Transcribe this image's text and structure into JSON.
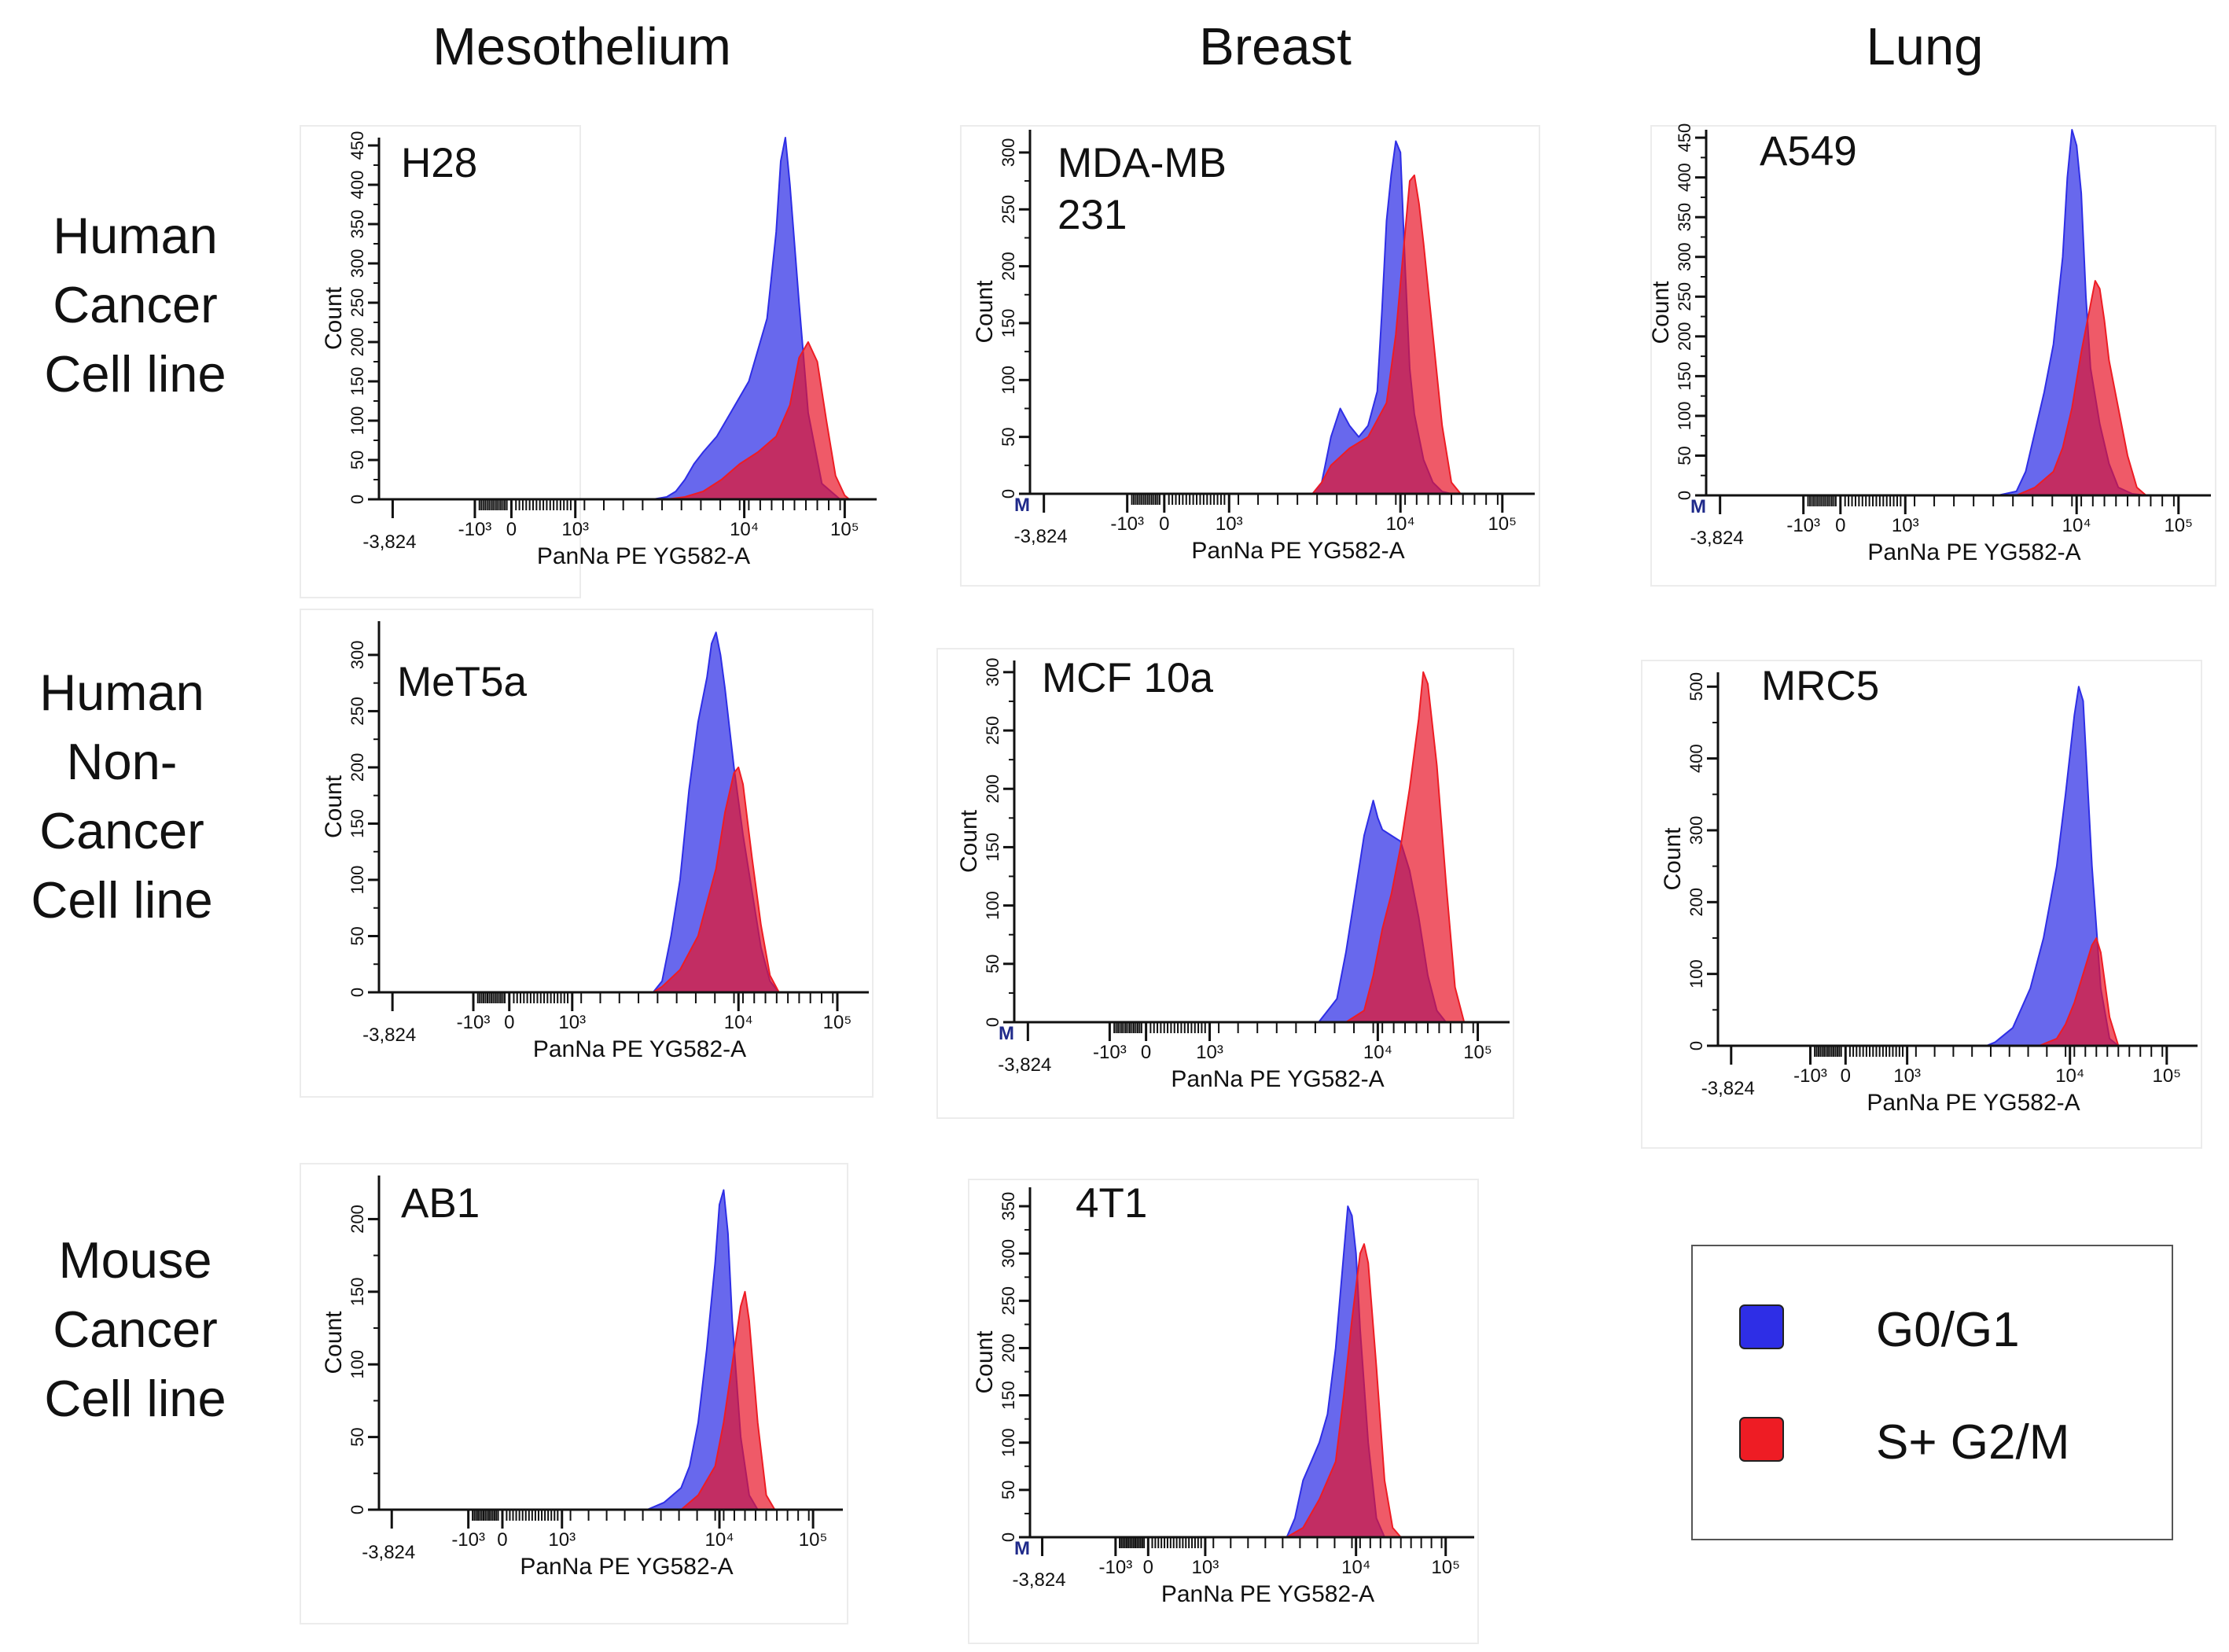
{
  "column_titles": [
    "Mesothelium",
    "Breast",
    "Lung"
  ],
  "row_titles": [
    [
      "Human",
      "Cancer",
      "Cell line"
    ],
    [
      "Human",
      "Non-",
      "Cancer",
      "Cell line"
    ],
    [
      "Mouse",
      "Cancer",
      "Cell line"
    ]
  ],
  "legend": {
    "items": [
      {
        "label": "G0/G1",
        "color": "#2e2ee6"
      },
      {
        "label": "S+ G2/M",
        "color": "#ee1c24"
      }
    ]
  },
  "chart_data": [
    {
      "type": "area",
      "label": [
        "H28"
      ],
      "xlabel": "PanNa PE YG582-A",
      "ylabel": "Count",
      "xticks": [
        "-3,824",
        "-10³",
        "0",
        "10³",
        "10⁴",
        "10⁵"
      ],
      "yticks": [
        "0",
        "50",
        "100",
        "150",
        "200",
        "250",
        "300",
        "350",
        "400",
        "450"
      ],
      "ymax": 460,
      "marker": "",
      "series": [
        {
          "name": "G0/G1",
          "x": [
            1.5,
            1.8,
            2.0,
            2.2,
            2.4,
            2.55,
            2.7,
            2.85,
            3.0,
            3.1,
            3.2,
            3.3,
            3.4,
            3.55,
            3.7,
            3.9,
            4.1,
            4.2,
            4.25,
            4.3,
            4.35,
            4.45,
            4.55,
            4.7,
            4.9
          ],
          "y": [
            0,
            0,
            0,
            0,
            0,
            0,
            0,
            0,
            3,
            10,
            25,
            45,
            60,
            80,
            110,
            150,
            230,
            340,
            430,
            460,
            400,
            250,
            110,
            20,
            0
          ]
        },
        {
          "name": "S+ G2/M",
          "x": [
            1.5,
            2.0,
            2.5,
            3.0,
            3.2,
            3.4,
            3.6,
            3.8,
            4.0,
            4.2,
            4.35,
            4.45,
            4.55,
            4.65,
            4.75,
            4.85,
            4.95,
            5.0
          ],
          "y": [
            0,
            0,
            0,
            0,
            3,
            10,
            25,
            45,
            60,
            80,
            120,
            180,
            200,
            175,
            100,
            30,
            5,
            0
          ]
        }
      ]
    },
    {
      "type": "area",
      "label": [
        "MDA-MB",
        "231"
      ],
      "xlabel": "PanNa PE YG582-A",
      "ylabel": "Count",
      "xticks": [
        "-3,824",
        "-10³",
        "0",
        "10³",
        "10⁴",
        "10⁵"
      ],
      "yticks": [
        "0",
        "50",
        "100",
        "150",
        "200",
        "250",
        "300"
      ],
      "ymax": 320,
      "marker": "M",
      "series": [
        {
          "name": "G0/G1",
          "x": [
            1.5,
            2.0,
            2.5,
            2.9,
            3.0,
            3.1,
            3.2,
            3.3,
            3.4,
            3.5,
            3.6,
            3.65,
            3.7,
            3.75,
            3.8,
            3.85,
            3.9,
            3.95,
            4.0,
            4.1,
            4.2,
            4.3,
            4.4
          ],
          "y": [
            0,
            0,
            0,
            0,
            10,
            50,
            75,
            60,
            50,
            60,
            90,
            160,
            240,
            280,
            310,
            300,
            200,
            110,
            70,
            30,
            10,
            2,
            0
          ]
        },
        {
          "name": "S+ G2/M",
          "x": [
            1.5,
            2.5,
            2.9,
            3.0,
            3.1,
            3.3,
            3.5,
            3.7,
            3.8,
            3.9,
            3.95,
            4.0,
            4.05,
            4.1,
            4.2,
            4.3,
            4.4,
            4.5
          ],
          "y": [
            0,
            0,
            0,
            10,
            25,
            40,
            50,
            80,
            140,
            230,
            275,
            280,
            255,
            220,
            140,
            60,
            10,
            0
          ]
        }
      ]
    },
    {
      "type": "area",
      "label": [
        "A549"
      ],
      "xlabel": "PanNa PE YG582-A",
      "ylabel": "Count",
      "xticks": [
        "-3,824",
        "-10³",
        "0",
        "10³",
        "10⁴",
        "10⁵"
      ],
      "yticks": [
        "0",
        "50",
        "100",
        "150",
        "200",
        "250",
        "300",
        "350",
        "400",
        "450"
      ],
      "ymax": 460,
      "marker": "M",
      "series": [
        {
          "name": "G0/G1",
          "x": [
            1.5,
            2.0,
            2.5,
            3.0,
            3.2,
            3.3,
            3.4,
            3.5,
            3.6,
            3.7,
            3.75,
            3.8,
            3.85,
            3.9,
            3.95,
            4.0,
            4.1,
            4.2,
            4.3,
            4.45,
            4.6
          ],
          "y": [
            0,
            0,
            0,
            0,
            5,
            30,
            80,
            130,
            190,
            300,
            400,
            460,
            440,
            380,
            250,
            160,
            90,
            40,
            10,
            2,
            0
          ]
        },
        {
          "name": "S+ G2/M",
          "x": [
            1.5,
            2.5,
            3.2,
            3.4,
            3.6,
            3.7,
            3.8,
            3.9,
            4.0,
            4.05,
            4.1,
            4.15,
            4.2,
            4.3,
            4.4,
            4.5,
            4.6
          ],
          "y": [
            0,
            0,
            0,
            10,
            30,
            60,
            110,
            180,
            240,
            270,
            260,
            220,
            170,
            110,
            50,
            10,
            0
          ]
        }
      ]
    },
    {
      "type": "area",
      "label": [
        "MeT5a"
      ],
      "xlabel": "PanNa PE YG582-A",
      "ylabel": "Count",
      "xticks": [
        "-3,824",
        "-10³",
        "0",
        "10³",
        "10⁴",
        "10⁵"
      ],
      "yticks": [
        "0",
        "50",
        "100",
        "150",
        "200",
        "250",
        "300"
      ],
      "ymax": 330,
      "marker": "",
      "series": [
        {
          "name": "G0/G1",
          "x": [
            1.5,
            2.0,
            2.5,
            2.9,
            3.0,
            3.1,
            3.2,
            3.3,
            3.4,
            3.5,
            3.55,
            3.6,
            3.65,
            3.7,
            3.8,
            3.9,
            4.0,
            4.1,
            4.2,
            4.3
          ],
          "y": [
            0,
            0,
            0,
            0,
            10,
            50,
            100,
            180,
            240,
            280,
            310,
            320,
            300,
            270,
            200,
            140,
            90,
            40,
            10,
            0
          ]
        },
        {
          "name": "S+ G2/M",
          "x": [
            1.5,
            2.9,
            3.0,
            3.2,
            3.4,
            3.6,
            3.7,
            3.8,
            3.85,
            3.9,
            4.0,
            4.1,
            4.2,
            4.3
          ],
          "y": [
            0,
            0,
            5,
            20,
            50,
            110,
            160,
            195,
            200,
            185,
            120,
            60,
            15,
            0
          ]
        }
      ]
    },
    {
      "type": "area",
      "label": [
        "MCF 10a"
      ],
      "xlabel": "PanNa PE YG582-A",
      "ylabel": "Count",
      "xticks": [
        "-3,824",
        "-10³",
        "0",
        "10³",
        "10⁴",
        "10⁵"
      ],
      "yticks": [
        "0",
        "50",
        "100",
        "150",
        "200",
        "250",
        "300"
      ],
      "ymax": 310,
      "marker": "M",
      "series": [
        {
          "name": "G0/G1",
          "x": [
            1.5,
            2.5,
            3.2,
            3.4,
            3.5,
            3.6,
            3.7,
            3.8,
            3.85,
            3.9,
            4.0,
            4.1,
            4.2,
            4.3,
            4.4,
            4.5,
            4.6
          ],
          "y": [
            0,
            0,
            0,
            20,
            60,
            110,
            160,
            190,
            175,
            165,
            160,
            155,
            130,
            90,
            40,
            10,
            0
          ]
        },
        {
          "name": "S+ G2/M",
          "x": [
            1.5,
            3.0,
            3.5,
            3.7,
            3.8,
            3.9,
            4.0,
            4.1,
            4.2,
            4.3,
            4.35,
            4.4,
            4.5,
            4.6,
            4.7,
            4.8
          ],
          "y": [
            0,
            0,
            0,
            10,
            40,
            80,
            110,
            150,
            200,
            260,
            300,
            290,
            220,
            120,
            30,
            0
          ]
        }
      ]
    },
    {
      "type": "area",
      "label": [
        "MRC5"
      ],
      "xlabel": "PanNa PE YG582-A",
      "ylabel": "Count",
      "xticks": [
        "-3,824",
        "-10³",
        "0",
        "10³",
        "10⁴",
        "10⁵"
      ],
      "yticks": [
        "0",
        "100",
        "200",
        "300",
        "400",
        "500"
      ],
      "ymax": 520,
      "marker": "",
      "series": [
        {
          "name": "G0/G1",
          "x": [
            1.5,
            2.5,
            2.9,
            3.0,
            3.2,
            3.4,
            3.55,
            3.7,
            3.8,
            3.9,
            3.95,
            4.0,
            4.1,
            4.2,
            4.3,
            4.4
          ],
          "y": [
            0,
            0,
            0,
            5,
            25,
            80,
            150,
            250,
            350,
            460,
            500,
            480,
            250,
            80,
            10,
            0
          ]
        },
        {
          "name": "S+ G2/M",
          "x": [
            1.5,
            3.0,
            3.5,
            3.7,
            3.8,
            3.9,
            4.0,
            4.1,
            4.15,
            4.2,
            4.3,
            4.4
          ],
          "y": [
            0,
            0,
            0,
            10,
            30,
            60,
            100,
            140,
            150,
            130,
            40,
            0
          ]
        }
      ]
    },
    {
      "type": "area",
      "label": [
        "AB1"
      ],
      "xlabel": "PanNa PE YG582-A",
      "ylabel": "Count",
      "xticks": [
        "-3,824",
        "-10³",
        "0",
        "10³",
        "10⁴",
        "10⁵"
      ],
      "yticks": [
        "0",
        "50",
        "100",
        "150",
        "200"
      ],
      "ymax": 230,
      "marker": "",
      "series": [
        {
          "name": "G0/G1",
          "x": [
            1.5,
            2.5,
            3.0,
            3.2,
            3.4,
            3.5,
            3.6,
            3.7,
            3.8,
            3.85,
            3.9,
            3.95,
            4.0,
            4.1,
            4.2,
            4.3
          ],
          "y": [
            0,
            0,
            0,
            5,
            15,
            30,
            60,
            110,
            170,
            210,
            220,
            190,
            130,
            50,
            10,
            0
          ]
        },
        {
          "name": "S+ G2/M",
          "x": [
            1.5,
            3.0,
            3.4,
            3.6,
            3.8,
            3.9,
            4.0,
            4.1,
            4.15,
            4.2,
            4.3,
            4.4,
            4.5
          ],
          "y": [
            0,
            0,
            0,
            10,
            30,
            60,
            100,
            140,
            150,
            130,
            60,
            10,
            0
          ]
        }
      ]
    },
    {
      "type": "area",
      "label": [
        "4T1"
      ],
      "xlabel": "PanNa PE YG582-A",
      "ylabel": "Count",
      "xticks": [
        "-3,824",
        "-10³",
        "0",
        "10³",
        "10⁴",
        "10⁵"
      ],
      "yticks": [
        "0",
        "50",
        "100",
        "150",
        "200",
        "250",
        "300",
        "350"
      ],
      "ymax": 370,
      "marker": "M",
      "series": [
        {
          "name": "G0/G1",
          "x": [
            1.5,
            2.5,
            3.0,
            3.1,
            3.2,
            3.3,
            3.4,
            3.5,
            3.6,
            3.7,
            3.75,
            3.8,
            3.85,
            3.9,
            4.0,
            4.1,
            4.2
          ],
          "y": [
            0,
            0,
            0,
            20,
            60,
            80,
            100,
            130,
            200,
            300,
            350,
            340,
            300,
            220,
            100,
            20,
            0
          ]
        },
        {
          "name": "S+ G2/M",
          "x": [
            1.5,
            3.0,
            3.2,
            3.4,
            3.6,
            3.7,
            3.8,
            3.9,
            3.95,
            4.0,
            4.1,
            4.2,
            4.3,
            4.4
          ],
          "y": [
            0,
            0,
            10,
            40,
            80,
            150,
            230,
            300,
            310,
            290,
            180,
            60,
            10,
            0
          ]
        }
      ]
    }
  ]
}
